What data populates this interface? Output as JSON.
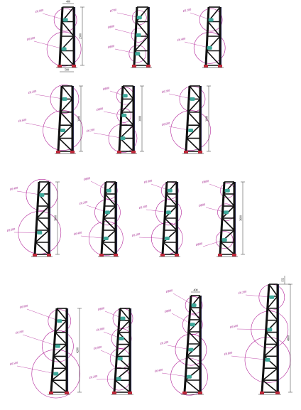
{
  "colors": {
    "circle": "#b4289b",
    "frame": "#111111",
    "brace": "#4a4a8a",
    "joint": "#3fa89a",
    "foot": "#c0283a",
    "dimension": "#000000"
  },
  "frames": [
    {
      "row": 1,
      "labels": [
        "Ø1000",
        "Ø1600"
      ],
      "dims": [
        "400",
        "500",
        "2500"
      ]
    },
    {
      "row": 1,
      "labels": [
        "Ø700",
        "Ø800",
        "Ø800"
      ],
      "dims": []
    },
    {
      "row": 1,
      "labels": [
        "Ø1200",
        "Ø1400"
      ],
      "dims": []
    },
    {
      "row": 2,
      "labels": [
        "Ø1200",
        "Ø1600"
      ],
      "dims": [
        "3000"
      ]
    },
    {
      "row": 2,
      "labels": [
        "Ø800",
        "Ø800",
        "Ø1200"
      ],
      "dims": [
        "3000"
      ]
    },
    {
      "row": 2,
      "labels": [
        "Ø1200",
        "Ø1600"
      ],
      "dims": [
        "3000"
      ]
    },
    {
      "row": 3,
      "labels": [
        "Ø1400",
        "Ø1600"
      ],
      "dims": [
        "3600"
      ]
    },
    {
      "row": 3,
      "labels": [
        "Ø800",
        "Ø1200",
        "Ø1400"
      ],
      "dims": []
    },
    {
      "row": 3,
      "labels": [
        "Ø1000",
        "Ø1200",
        "Ø1200"
      ],
      "dims": []
    },
    {
      "row": 3,
      "labels": [
        "Ø800",
        "Ø800",
        "Ø800"
      ],
      "dims": [
        "3600"
      ]
    },
    {
      "row": 4,
      "labels": [
        "Ø1000",
        "Ø1200",
        "Ø1500"
      ],
      "dims": [
        "4200"
      ]
    },
    {
      "row": 4,
      "labels": [
        "Ø800",
        "Ø1000",
        "Ø1000",
        "Ø1200"
      ],
      "dims": []
    },
    {
      "row": 4,
      "labels": [
        "Ø800",
        "Ø800",
        "Ø1200",
        "Ø1400"
      ],
      "dims": [
        "400"
      ]
    },
    {
      "row": 4,
      "labels": [
        "Ø1200",
        "Ø1600",
        "Ø1800"
      ],
      "dims": [
        "4800",
        "152"
      ]
    }
  ]
}
